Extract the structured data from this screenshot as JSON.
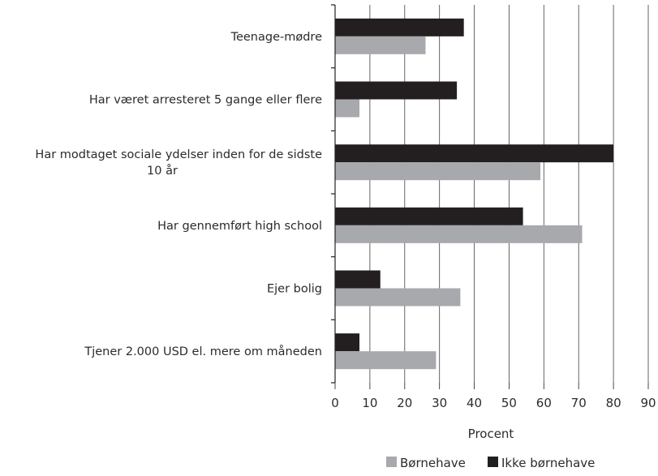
{
  "chart_data": {
    "type": "bar",
    "orientation": "horizontal",
    "categories": [
      [
        "Teenage-mødre"
      ],
      [
        "Har været arresteret 5 gange eller flere"
      ],
      [
        "Har modtaget sociale ydelser inden for de sidste",
        "10 år"
      ],
      [
        "Har gennemført high school"
      ],
      [
        "Ejer bolig"
      ],
      [
        "Tjener 2.000 USD el. mere om måneden"
      ]
    ],
    "series": [
      {
        "name": "Ikke børnehave",
        "color": "#231f20",
        "values": [
          37,
          35,
          80,
          54,
          13,
          7
        ]
      },
      {
        "name": "Børnehave",
        "color": "#a7a9ac",
        "values": [
          26,
          7,
          59,
          71,
          36,
          29
        ]
      }
    ],
    "xlabel": "Procent",
    "ylabel": "",
    "xlim": [
      0,
      90
    ],
    "xticks": [
      0,
      10,
      20,
      30,
      40,
      50,
      60,
      70,
      80,
      90
    ],
    "grid": "vertical",
    "legend": {
      "placement": "bottom-right",
      "entries": [
        {
          "label": "Børnehave",
          "color": "#a7a9ac"
        },
        {
          "label": "Ikke børnehave",
          "color": "#231f20"
        }
      ]
    }
  }
}
